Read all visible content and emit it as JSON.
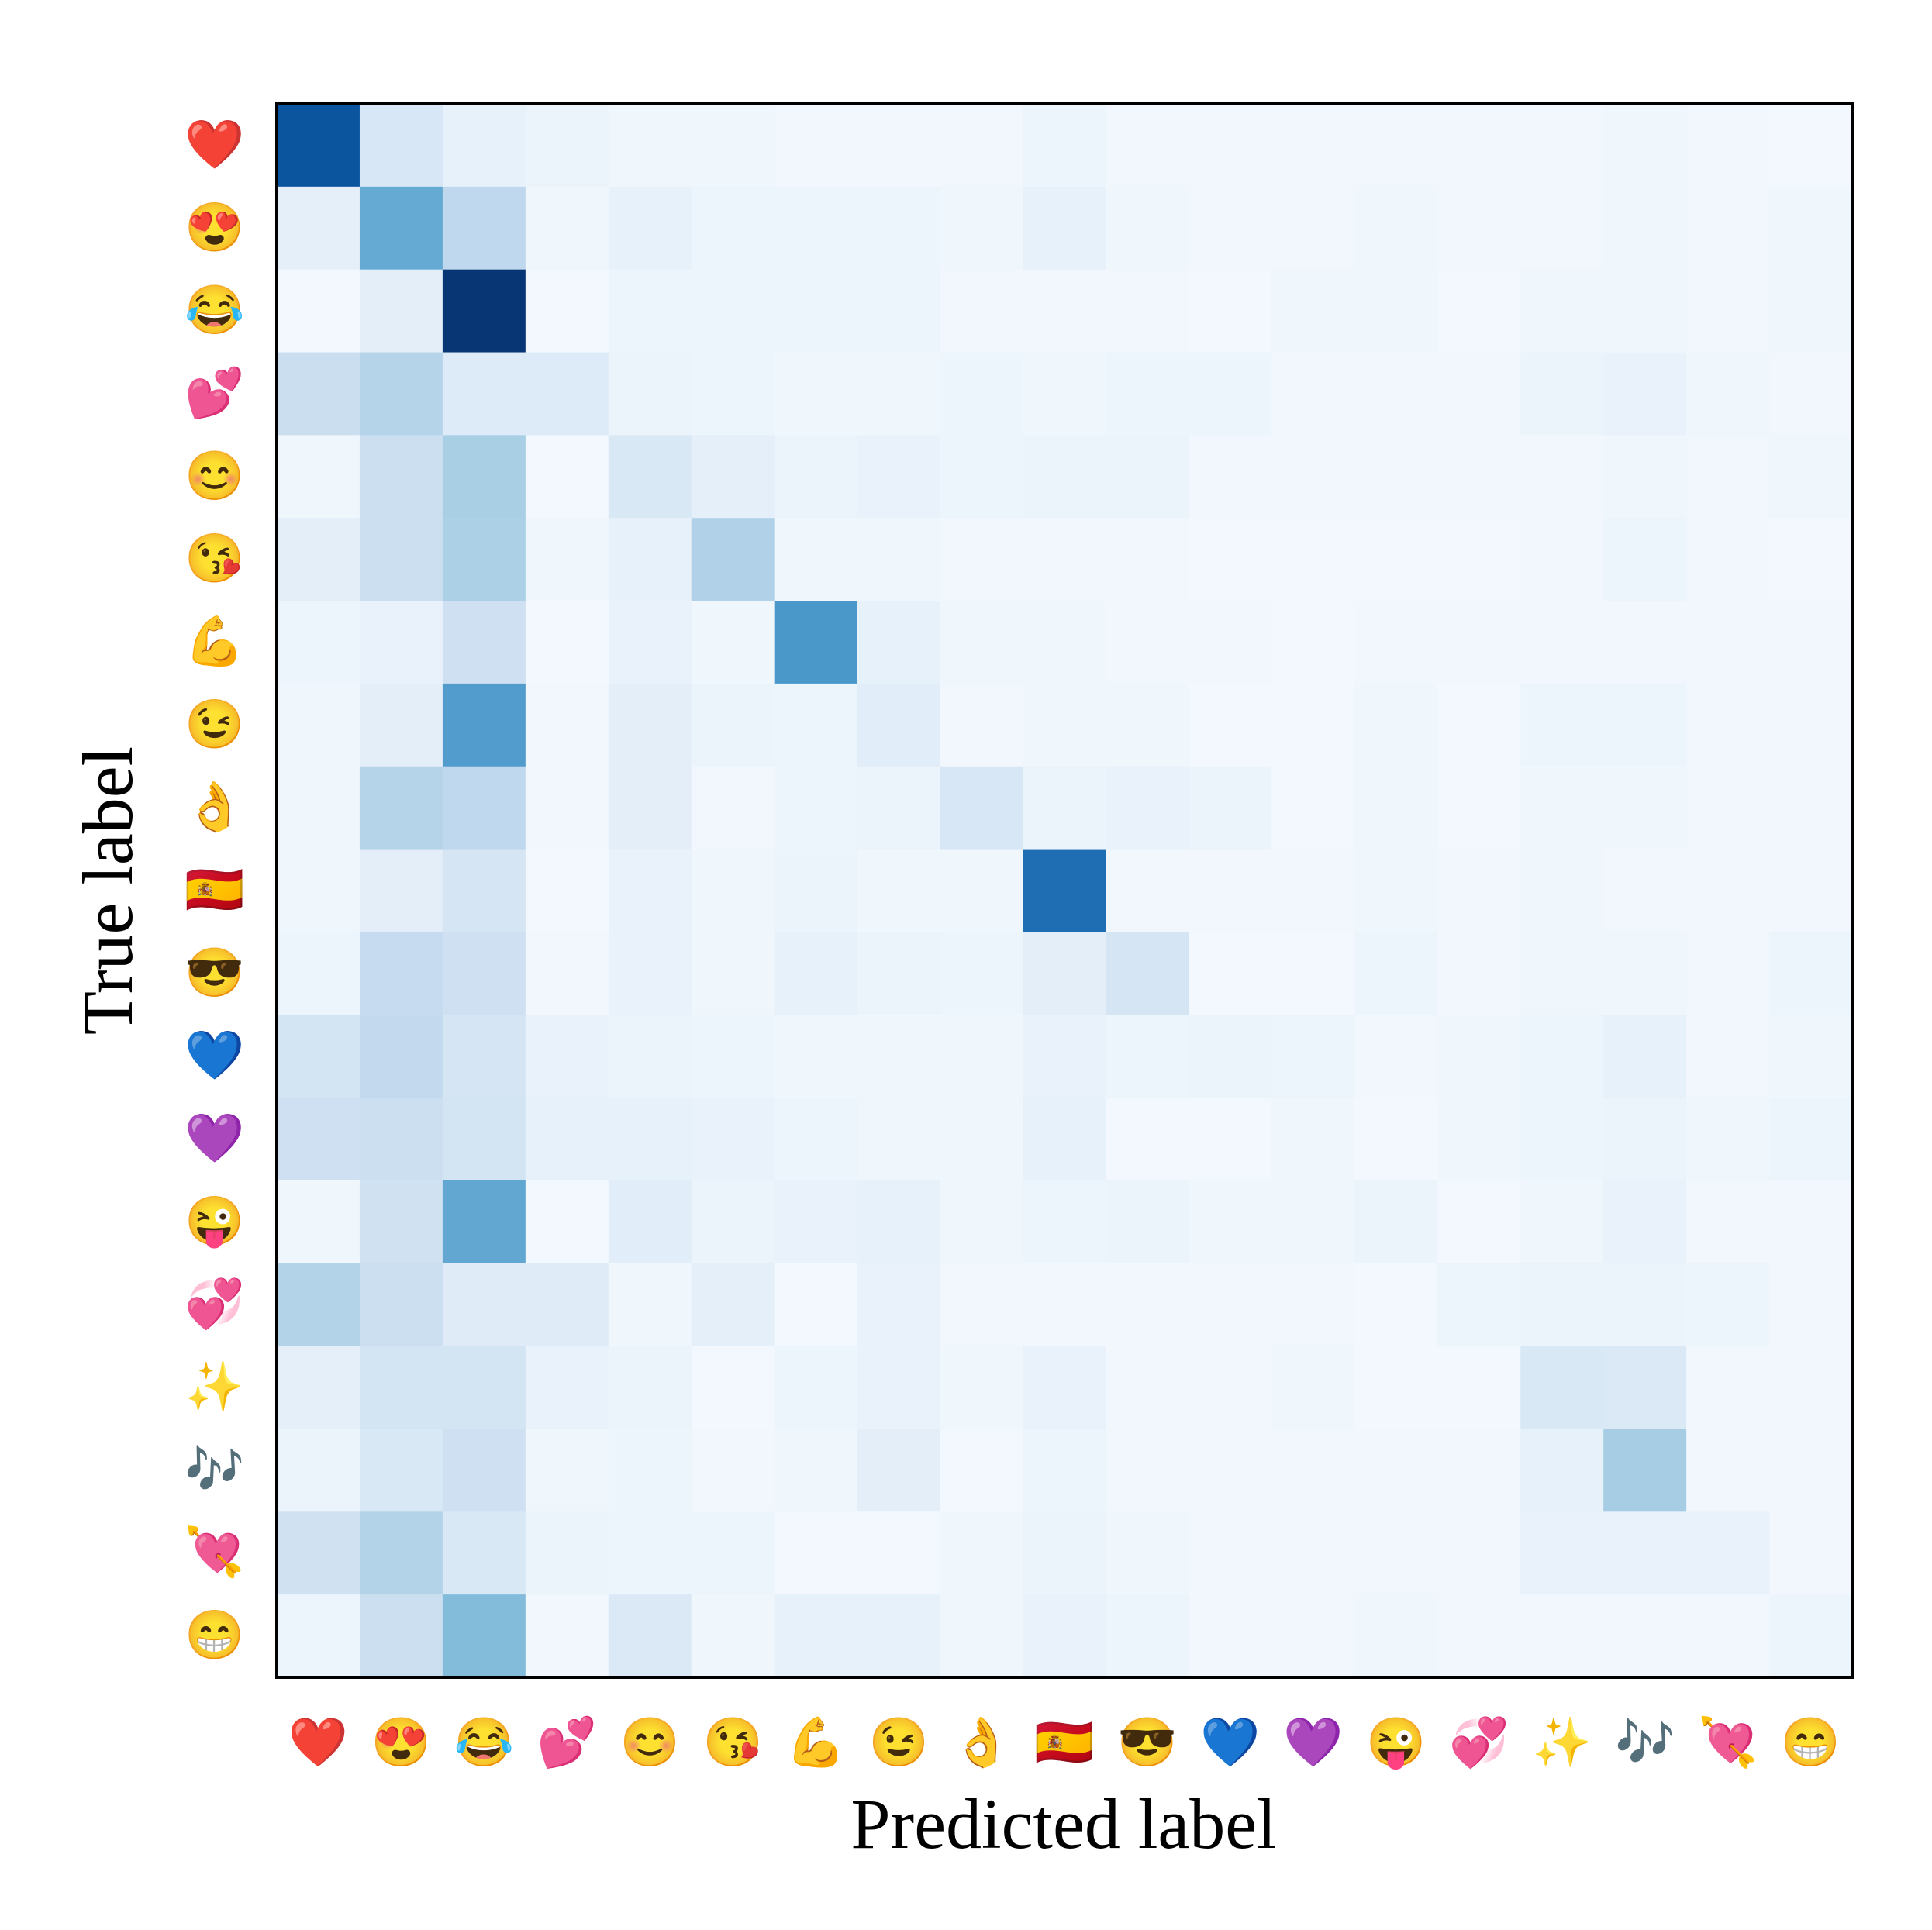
{
  "chart_data": {
    "type": "heatmap",
    "title": "",
    "xlabel": "Predicted label",
    "ylabel": "True label",
    "colormap": "Blues",
    "value_range": [
      0,
      1
    ],
    "row_labels": [
      "❤️",
      "😍",
      "😂",
      "💕",
      "😊",
      "😘",
      "💪",
      "😉",
      "👌",
      "🇪🇸",
      "😎",
      "💙",
      "💜",
      "😜",
      "💞",
      "✨",
      "🎶",
      "💘",
      "😁"
    ],
    "col_labels": [
      "❤️",
      "😍",
      "😂",
      "💕",
      "😊",
      "😘",
      "💪",
      "😉",
      "👌",
      "🇪🇸",
      "😎",
      "💙",
      "💜",
      "😜",
      "💞",
      "✨",
      "🎶",
      "💘",
      "😁"
    ],
    "matrix": [
      [
        0.86,
        0.16,
        0.08,
        0.06,
        0.04,
        0.04,
        0.03,
        0.03,
        0.03,
        0.05,
        0.03,
        0.03,
        0.03,
        0.03,
        0.03,
        0.03,
        0.04,
        0.03,
        0.02
      ],
      [
        0.09,
        0.52,
        0.27,
        0.04,
        0.08,
        0.05,
        0.05,
        0.05,
        0.04,
        0.08,
        0.04,
        0.03,
        0.03,
        0.04,
        0.03,
        0.03,
        0.04,
        0.03,
        0.04
      ],
      [
        0.02,
        0.1,
        0.98,
        0.02,
        0.05,
        0.05,
        0.05,
        0.05,
        0.03,
        0.03,
        0.03,
        0.02,
        0.04,
        0.04,
        0.02,
        0.04,
        0.04,
        0.03,
        0.04
      ],
      [
        0.23,
        0.3,
        0.13,
        0.13,
        0.06,
        0.05,
        0.04,
        0.04,
        0.05,
        0.04,
        0.05,
        0.05,
        0.03,
        0.03,
        0.03,
        0.06,
        0.07,
        0.04,
        0.03
      ],
      [
        0.04,
        0.22,
        0.34,
        0.02,
        0.15,
        0.09,
        0.06,
        0.07,
        0.05,
        0.06,
        0.06,
        0.03,
        0.03,
        0.03,
        0.03,
        0.03,
        0.04,
        0.03,
        0.04
      ],
      [
        0.1,
        0.22,
        0.33,
        0.04,
        0.08,
        0.32,
        0.04,
        0.04,
        0.03,
        0.03,
        0.03,
        0.02,
        0.02,
        0.02,
        0.02,
        0.03,
        0.05,
        0.03,
        0.02
      ],
      [
        0.05,
        0.07,
        0.21,
        0.02,
        0.07,
        0.04,
        0.6,
        0.08,
        0.04,
        0.04,
        0.03,
        0.03,
        0.02,
        0.03,
        0.03,
        0.03,
        0.03,
        0.03,
        0.03
      ],
      [
        0.04,
        0.1,
        0.58,
        0.03,
        0.1,
        0.06,
        0.05,
        0.11,
        0.03,
        0.04,
        0.04,
        0.02,
        0.02,
        0.04,
        0.02,
        0.05,
        0.05,
        0.03,
        0.03
      ],
      [
        0.04,
        0.3,
        0.27,
        0.03,
        0.1,
        0.03,
        0.05,
        0.06,
        0.16,
        0.06,
        0.07,
        0.06,
        0.02,
        0.04,
        0.02,
        0.04,
        0.04,
        0.03,
        0.03
      ],
      [
        0.04,
        0.1,
        0.17,
        0.02,
        0.07,
        0.04,
        0.06,
        0.04,
        0.04,
        0.76,
        0.03,
        0.03,
        0.03,
        0.04,
        0.03,
        0.04,
        0.03,
        0.03,
        0.03
      ],
      [
        0.05,
        0.25,
        0.21,
        0.03,
        0.07,
        0.04,
        0.08,
        0.06,
        0.05,
        0.1,
        0.17,
        0.02,
        0.02,
        0.05,
        0.03,
        0.04,
        0.04,
        0.03,
        0.05
      ],
      [
        0.18,
        0.26,
        0.17,
        0.07,
        0.06,
        0.05,
        0.04,
        0.04,
        0.04,
        0.07,
        0.05,
        0.06,
        0.05,
        0.03,
        0.04,
        0.05,
        0.08,
        0.03,
        0.04
      ],
      [
        0.21,
        0.22,
        0.18,
        0.08,
        0.08,
        0.07,
        0.05,
        0.04,
        0.04,
        0.08,
        0.02,
        0.02,
        0.04,
        0.02,
        0.04,
        0.05,
        0.06,
        0.04,
        0.05
      ],
      [
        0.04,
        0.2,
        0.53,
        0.02,
        0.11,
        0.06,
        0.07,
        0.08,
        0.04,
        0.05,
        0.06,
        0.04,
        0.04,
        0.06,
        0.02,
        0.04,
        0.07,
        0.03,
        0.03
      ],
      [
        0.31,
        0.22,
        0.12,
        0.12,
        0.04,
        0.09,
        0.02,
        0.07,
        0.03,
        0.03,
        0.03,
        0.03,
        0.03,
        0.02,
        0.05,
        0.06,
        0.06,
        0.05,
        0.03
      ],
      [
        0.09,
        0.18,
        0.18,
        0.07,
        0.06,
        0.02,
        0.05,
        0.07,
        0.04,
        0.07,
        0.03,
        0.03,
        0.04,
        0.02,
        0.02,
        0.15,
        0.14,
        0.03,
        0.03
      ],
      [
        0.06,
        0.15,
        0.21,
        0.04,
        0.05,
        0.03,
        0.04,
        0.1,
        0.02,
        0.05,
        0.03,
        0.03,
        0.03,
        0.03,
        0.03,
        0.08,
        0.35,
        0.03,
        0.03
      ],
      [
        0.2,
        0.31,
        0.15,
        0.06,
        0.05,
        0.05,
        0.02,
        0.02,
        0.04,
        0.06,
        0.04,
        0.03,
        0.03,
        0.03,
        0.03,
        0.07,
        0.07,
        0.07,
        0.03
      ],
      [
        0.05,
        0.22,
        0.44,
        0.03,
        0.14,
        0.04,
        0.08,
        0.08,
        0.04,
        0.07,
        0.05,
        0.03,
        0.03,
        0.04,
        0.03,
        0.03,
        0.03,
        0.03,
        0.05
      ]
    ]
  }
}
